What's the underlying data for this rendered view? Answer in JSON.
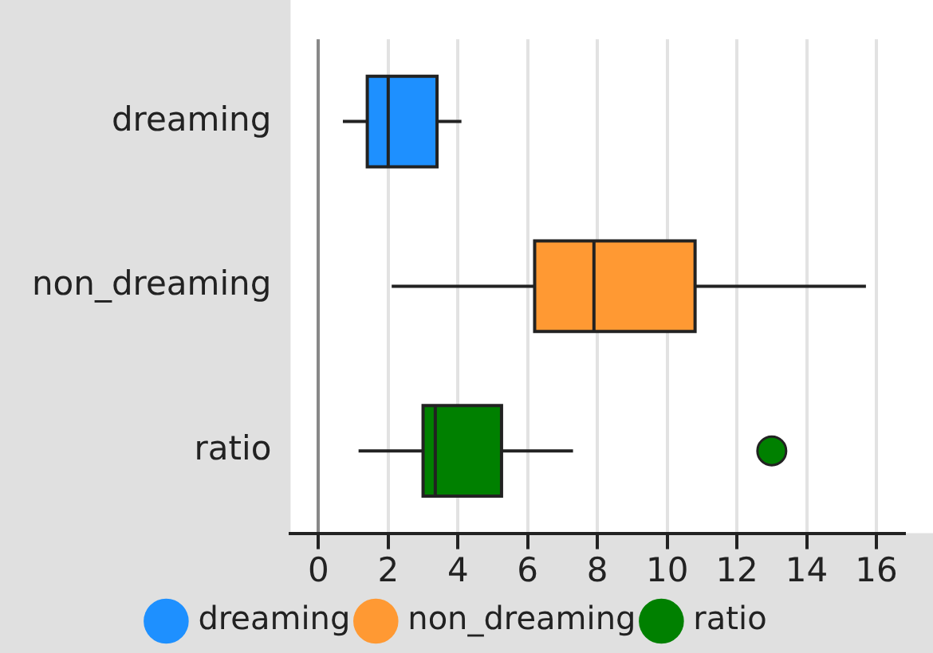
{
  "chart_data": {
    "type": "box",
    "orientation": "horizontal",
    "categories": [
      "dreaming",
      "non_dreaming",
      "ratio"
    ],
    "series": [
      {
        "name": "dreaming",
        "color": "#1e90ff",
        "boxes": [
          {
            "low": 0.7,
            "q1": 1.4,
            "median": 2.0,
            "q3": 3.4,
            "high": 4.1
          },
          null,
          null
        ]
      },
      {
        "name": "non_dreaming",
        "color": "#ff9933",
        "boxes": [
          null,
          {
            "low": 2.1,
            "q1": 6.2,
            "median": 7.9,
            "q3": 10.8,
            "high": 15.7
          },
          null
        ]
      },
      {
        "name": "ratio",
        "color": "#008000",
        "boxes": [
          null,
          null,
          {
            "low": 1.15,
            "q1": 3.0,
            "median": 3.35,
            "q3": 5.25,
            "high": 7.3,
            "outliers": [
              13.0
            ]
          }
        ]
      }
    ],
    "xlim": [
      -0.8,
      16.8
    ],
    "xticks": [
      0,
      2,
      4,
      6,
      8,
      10,
      12,
      14,
      16
    ],
    "grid": "x",
    "legend": "bottom"
  }
}
